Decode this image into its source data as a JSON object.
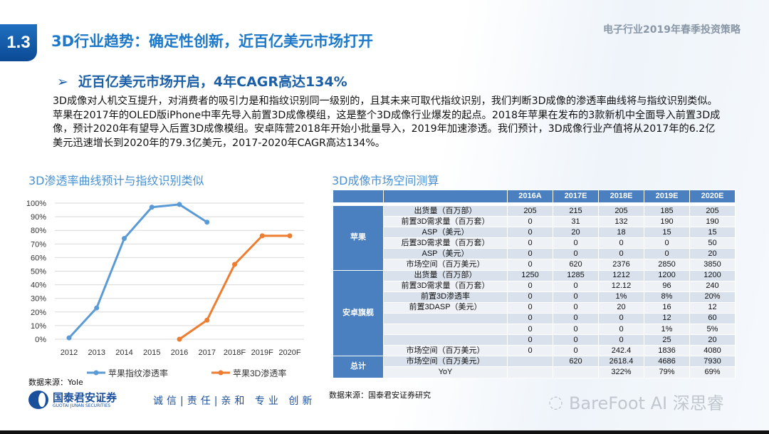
{
  "header": {
    "section_number": "1.3",
    "title": "3D行业趋势：确定性创新，近百亿美元市场打开",
    "brand_title": "电子行业2019年春季投资策略"
  },
  "subtitle": {
    "arrow": "➢",
    "text": "近百亿美元市场开启，4年CAGR高达134%"
  },
  "paragraph": "3D成像对人机交互提升，对消费者的吸引力是和指纹识别同一级别的，且其未来可取代指纹识别，我们判断3D成像的渗透率曲线将与指纹识别类似。苹果在2017年的OLED版iPhone中率先导入前置3D成像模组，这是整个3D成像行业爆发的起点。2018年苹果在发布的3款新机中全面导入前置3D成像，预计2020年有望导入后置3D成像模组。安卓阵营2018年开始小批量导入，2019年加速渗透。我们预计，3D成像行业产值将从2017年的6.2亿美元迅速增长到2020年的79.3亿美元，2017-2020年CAGR高达134%。",
  "chart_section_title": "3D渗透率曲线预计与指纹识别类似",
  "table_section_title": "3D成像市场空间测算",
  "chart_data": {
    "type": "line",
    "categories": [
      "2012",
      "2013",
      "2014",
      "2015",
      "2016",
      "2017",
      "2018F",
      "2019F",
      "2020F"
    ],
    "yticks": [
      "0%",
      "10%",
      "20%",
      "30%",
      "40%",
      "50%",
      "60%",
      "70%",
      "80%",
      "90%",
      "100%"
    ],
    "ylim": [
      0,
      100
    ],
    "grid": true,
    "legend_placement": "bottom",
    "series": [
      {
        "name": "苹果指纹渗透率",
        "color": "#5b9bd5",
        "values": [
          1,
          23,
          74,
          97,
          99,
          86,
          null,
          null,
          null
        ]
      },
      {
        "name": "苹果3D渗透率",
        "color": "#ed7d31",
        "values": [
          null,
          null,
          null,
          null,
          0,
          14,
          55,
          76,
          76
        ]
      }
    ]
  },
  "chart_source": "数据来源：Yole",
  "table": {
    "columns": [
      "2016A",
      "2017E",
      "2018E",
      "2019E",
      "2020E"
    ],
    "groups": [
      {
        "name": "苹果",
        "rows": [
          {
            "label": "出货量（百万部）",
            "values": [
              "205",
              "215",
              "205",
              "185",
              "205"
            ]
          },
          {
            "label": "前置3D需求量（百万套）",
            "values": [
              "0",
              "31",
              "132",
              "190",
              "190"
            ]
          },
          {
            "label": "ASP（美元）",
            "values": [
              "0",
              "20",
              "18",
              "15",
              "15"
            ]
          },
          {
            "label": "后置3D需求量（百万套）",
            "values": [
              "0",
              "0",
              "0",
              "0",
              "50"
            ]
          },
          {
            "label": "ASP（美元）",
            "values": [
              "0",
              "0",
              "0",
              "0",
              "20"
            ]
          },
          {
            "label": "市场空间（百万美元）",
            "values": [
              "0",
              "620",
              "2376",
              "2850",
              "3850"
            ]
          }
        ]
      },
      {
        "name": "安卓旗舰",
        "rows": [
          {
            "label": "出货量（百万部）",
            "values": [
              "1250",
              "1285",
              "1212",
              "1200",
              "1200"
            ]
          },
          {
            "label": "前置3D需求量（百万套）",
            "values": [
              "0",
              "0",
              "12.12",
              "96",
              "240"
            ]
          },
          {
            "label": "前置3D渗透率",
            "values": [
              "0",
              "0",
              "1%",
              "8%",
              "20%"
            ]
          },
          {
            "label": "前置3DASP（美元）",
            "values": [
              "0",
              "0",
              "20",
              "16",
              "12"
            ]
          },
          {
            "label": "",
            "values": [
              "0",
              "0",
              "0",
              "12",
              "60"
            ]
          },
          {
            "label": "",
            "values": [
              "0",
              "0",
              "0",
              "1%",
              "5%"
            ]
          },
          {
            "label": "",
            "values": [
              "0",
              "0",
              "0",
              "25",
              "20"
            ]
          },
          {
            "label": "市场空间（百万美元）",
            "values": [
              "0",
              "0",
              "242.4",
              "1836",
              "4080"
            ]
          }
        ]
      },
      {
        "name": "总计",
        "rows": [
          {
            "label": "市场空间（百万美元）",
            "values": [
              "",
              "620",
              "2618.4",
              "4686",
              "7930"
            ]
          },
          {
            "label": "YoY",
            "values": [
              "",
              "",
              "322%",
              "79%",
              "69%"
            ]
          }
        ]
      }
    ]
  },
  "table_source": "数据来源：国泰君安证券研究",
  "footer": {
    "logo_cn": "国泰君安证券",
    "logo_en": "GUOTAI JUNAN SECURITIES",
    "motto": "诚信|责任|亲和 专业 创新",
    "watermark": "BareFoot AI 深思睿"
  }
}
